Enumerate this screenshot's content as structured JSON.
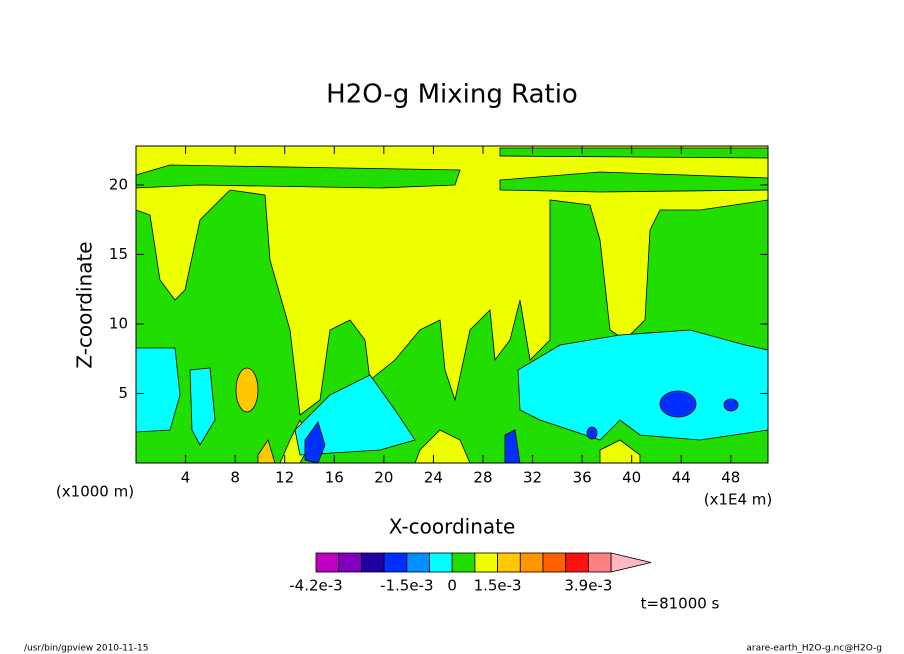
{
  "chart_data": {
    "type": "contour",
    "title": "H2O-g Mixing Ratio",
    "x_label": "X-coordinate",
    "y_label": "Z-coordinate",
    "x_unit_note": "(x1000 m)",
    "x_scale_note": "(x1E4 m)",
    "xlim": [
      0,
      51
    ],
    "ylim": [
      0,
      22.8
    ],
    "xticks": [
      4,
      8,
      12,
      16,
      20,
      24,
      28,
      32,
      36,
      40,
      44,
      48
    ],
    "yticks": [
      5,
      10,
      15,
      20
    ],
    "colorbar": {
      "colors": [
        "#c000c0",
        "#8000c0",
        "#2000a0",
        "#0030ff",
        "#0090ff",
        "#00ffff",
        "#22dd00",
        "#eeff00",
        "#ffc800",
        "#ff9600",
        "#ff6000",
        "#ff1010",
        "#ff8080",
        "#ffb8c0"
      ],
      "ticks": [
        {
          "value": -0.0042,
          "label": "-4.2e-3"
        },
        {
          "value": -0.0015,
          "label": "-1.5e-3"
        },
        0,
        {
          "value": 0.0015,
          "label": "1.5e-3"
        },
        {
          "value": 0.0039,
          "label": "3.9e-3"
        }
      ]
    },
    "time_label": "t=81000 s"
  },
  "footer": {
    "left": "/usr/bin/gpview  2010-11-15",
    "right": "arare-earth_H2O-g.nc@H2O-g"
  }
}
